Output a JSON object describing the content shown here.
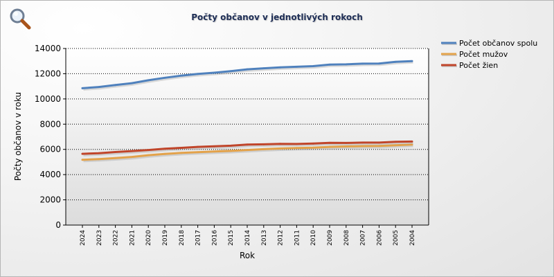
{
  "chart_data": {
    "type": "line",
    "title": "Počty občanov v jednotlivých rokoch",
    "xlabel": "Rok",
    "ylabel": "Počty občanov v roku",
    "categories": [
      "2024",
      "2023",
      "2022",
      "2021",
      "2020",
      "2019",
      "2018",
      "2017",
      "2016",
      "2015",
      "2014",
      "2013",
      "2012",
      "2011",
      "2010",
      "2009",
      "2008",
      "2007",
      "2006",
      "2005",
      "2004"
    ],
    "ylim": [
      0,
      14000
    ],
    "yticks": [
      0,
      2000,
      4000,
      6000,
      8000,
      10000,
      12000,
      14000
    ],
    "grid": true,
    "legend_position": "top-right",
    "series": [
      {
        "name": "Počet občanov spolu",
        "color": "#4f81bd",
        "values": [
          10850,
          10950,
          11100,
          11250,
          11480,
          11680,
          11850,
          11980,
          12080,
          12200,
          12350,
          12430,
          12500,
          12550,
          12600,
          12720,
          12740,
          12800,
          12810,
          12940,
          13000
        ]
      },
      {
        "name": "Počet mužov",
        "color": "#e3a24a",
        "values": [
          5180,
          5230,
          5310,
          5400,
          5540,
          5640,
          5720,
          5780,
          5830,
          5880,
          5950,
          6020,
          6070,
          6110,
          6140,
          6200,
          6230,
          6260,
          6270,
          6330,
          6380
        ]
      },
      {
        "name": "Počet žien",
        "color": "#c0452a",
        "values": [
          5650,
          5700,
          5790,
          5870,
          5950,
          6050,
          6120,
          6200,
          6240,
          6290,
          6380,
          6400,
          6440,
          6430,
          6460,
          6520,
          6510,
          6540,
          6540,
          6600,
          6620
        ]
      }
    ]
  },
  "ui": {
    "zoom_icon": "magnifier-icon"
  }
}
